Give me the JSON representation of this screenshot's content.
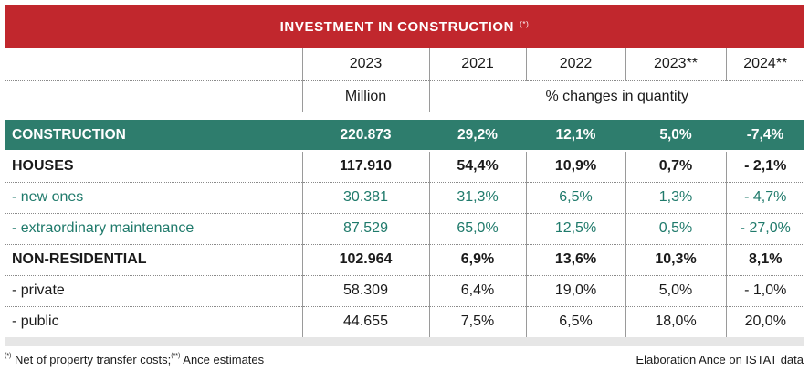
{
  "title": "INVESTMENT IN CONSTRUCTION",
  "title_note": "(*)",
  "header": {
    "years": [
      "2023",
      "2021",
      "2022",
      "2023**",
      "2024**"
    ],
    "unit_left": "Million",
    "unit_right": "% changes in quantity"
  },
  "rows": [
    {
      "label": "CONSTRUCTION",
      "values": [
        "220.873",
        "29,2%",
        "12,1%",
        "5,0%",
        "-7,4%"
      ]
    },
    {
      "label": "HOUSES",
      "values": [
        "117.910",
        "54,4%",
        "10,9%",
        "0,7%",
        "- 2,1%"
      ]
    },
    {
      "label": "- new ones",
      "values": [
        "30.381",
        "31,3%",
        "6,5%",
        "1,3%",
        "- 4,7%"
      ]
    },
    {
      "label": "- extraordinary maintenance",
      "values": [
        "87.529",
        "65,0%",
        "12,5%",
        "0,5%",
        "- 27,0%"
      ]
    },
    {
      "label": "NON-RESIDENTIAL",
      "values": [
        "102.964",
        "6,9%",
        "13,6%",
        "10,3%",
        "8,1%"
      ]
    },
    {
      "label": "- private",
      "values": [
        "58.309",
        "6,4%",
        "19,0%",
        "5,0%",
        "- 1,0%"
      ]
    },
    {
      "label": "- public",
      "values": [
        "44.655",
        "7,5%",
        "6,5%",
        "18,0%",
        "20,0%"
      ]
    }
  ],
  "footnote": {
    "mark1": "(*)",
    "text1": " Net of property transfer costs;",
    "mark2": "(**)",
    "text2": " Ance estimates",
    "source": "Elaboration Ance on ISTAT data"
  },
  "colors": {
    "title_bg": "#c1272d",
    "construction_bg": "#2e7d6d",
    "sub_text": "#1f7a6b"
  }
}
